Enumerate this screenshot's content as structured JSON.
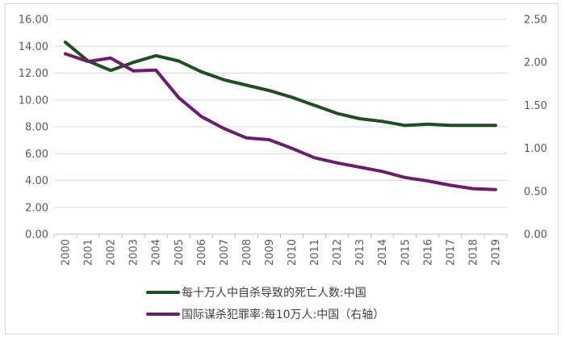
{
  "chart_data": {
    "type": "line",
    "x": [
      "2000",
      "2001",
      "2002",
      "2003",
      "2004",
      "2005",
      "2006",
      "2007",
      "2008",
      "2009",
      "2010",
      "2011",
      "2012",
      "2013",
      "2014",
      "2015",
      "2016",
      "2017",
      "2018",
      "2019"
    ],
    "series": [
      {
        "name": "每十万人中自杀导致的死亡人数:中国",
        "axis": "left",
        "color": "#1f4e20",
        "values": [
          14.3,
          12.9,
          12.2,
          12.8,
          13.3,
          12.9,
          12.1,
          11.5,
          11.1,
          10.7,
          10.2,
          9.6,
          9.0,
          8.6,
          8.4,
          8.1,
          8.2,
          8.1,
          8.1,
          8.1
        ]
      },
      {
        "name": "国际谋杀犯罪率:每10万人:中国（右轴）",
        "axis": "right",
        "color": "#6a1f6a",
        "values": [
          2.1,
          2.01,
          2.05,
          1.9,
          1.91,
          1.59,
          1.37,
          1.23,
          1.12,
          1.1,
          1.0,
          0.89,
          0.83,
          0.78,
          0.73,
          0.66,
          0.62,
          0.57,
          0.53,
          0.52
        ]
      }
    ],
    "y_left": {
      "ylim": [
        0,
        16
      ],
      "ticks": [
        "0.00",
        "2.00",
        "4.00",
        "6.00",
        "8.00",
        "10.00",
        "12.00",
        "14.00",
        "16.00"
      ]
    },
    "y_right": {
      "ylim": [
        0,
        2.5
      ],
      "ticks": [
        "0.00",
        "0.50",
        "1.00",
        "1.50",
        "2.00",
        "2.50"
      ]
    },
    "grid": "horizontal",
    "legend_position": "bottom"
  }
}
